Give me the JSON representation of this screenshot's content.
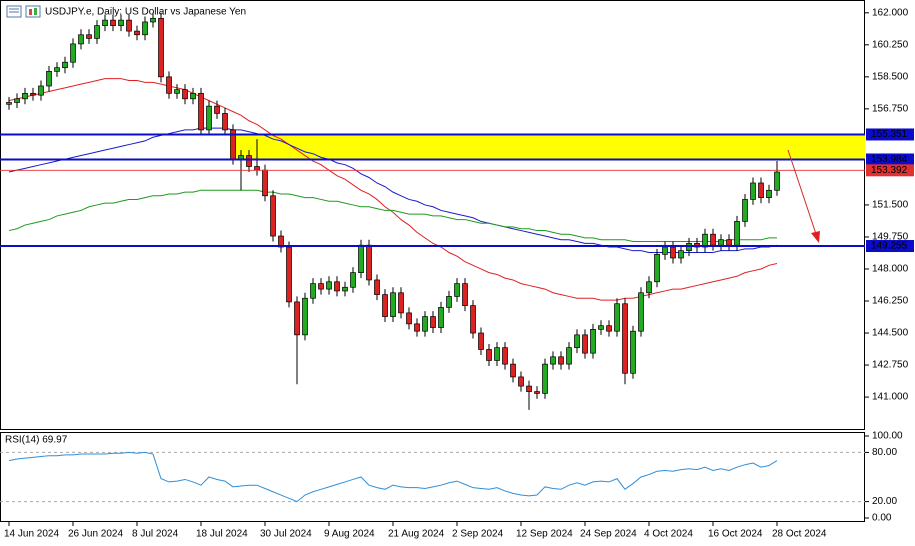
{
  "chart_data": [
    {
      "type": "candlestick",
      "title": "USDJPY.e, Daily:  US Dollar vs Japanese Yen",
      "categories": [
        "14 Jun 2024",
        null,
        null,
        null,
        null,
        null,
        null,
        null,
        "26 Jun 2024",
        null,
        null,
        null,
        null,
        null,
        null,
        null,
        "8 Jul 2024",
        null,
        null,
        null,
        null,
        null,
        null,
        null,
        "18 Jul 2024",
        null,
        null,
        null,
        null,
        null,
        null,
        null,
        "30 Jul 2024",
        null,
        null,
        null,
        null,
        null,
        null,
        null,
        "9 Aug 2024",
        null,
        null,
        null,
        null,
        null,
        null,
        null,
        "21 Aug 2024",
        null,
        null,
        null,
        null,
        null,
        null,
        null,
        "2 Sep 2024",
        null,
        null,
        null,
        null,
        null,
        null,
        null,
        "12 Sep 2024",
        null,
        null,
        null,
        null,
        null,
        null,
        null,
        "24 Sep 2024",
        null,
        null,
        null,
        null,
        null,
        null,
        null,
        "4 Oct 2024",
        null,
        null,
        null,
        null,
        null,
        null,
        null,
        "16 Oct 2024",
        null,
        null,
        null,
        null,
        null,
        null,
        null,
        "28 Oct 2024"
      ],
      "open": [
        157.0,
        157.1,
        157.3,
        157.6,
        157.5,
        158.0,
        158.8,
        159.0,
        159.3,
        160.3,
        160.8,
        160.6,
        161.3,
        161.6,
        161.3,
        161.6,
        161.0,
        160.8,
        161.5,
        161.7,
        158.5,
        157.6,
        157.8,
        157.3,
        157.6,
        155.6,
        156.9,
        156.5,
        155.6,
        154.0,
        154.2,
        153.6,
        153.4,
        152.0,
        149.8,
        149.2,
        146.2,
        144.4,
        146.4,
        147.2,
        146.9,
        147.3,
        146.8,
        147.0,
        147.8,
        149.3,
        147.4,
        146.6,
        145.4,
        146.7,
        145.6,
        145.0,
        144.6,
        145.4,
        144.8,
        145.9,
        146.5,
        147.2,
        146.0,
        144.5,
        143.6,
        143.0,
        143.7,
        142.8,
        142.1,
        141.6,
        141.3,
        141.2,
        142.8,
        143.2,
        142.8,
        143.7,
        144.4,
        143.4,
        144.7,
        144.9,
        144.6,
        146.1,
        142.3,
        144.6,
        146.7,
        147.3,
        148.8,
        149.2,
        148.6,
        149.0,
        149.4,
        149.2,
        149.9,
        149.3,
        149.6,
        149.3,
        150.6,
        151.8,
        152.7,
        151.9,
        152.3
      ],
      "high": [
        157.4,
        157.6,
        157.9,
        157.9,
        158.3,
        159.1,
        159.3,
        159.6,
        160.6,
        161.1,
        161.1,
        161.6,
        161.9,
        161.9,
        161.9,
        161.9,
        161.3,
        161.8,
        162.0,
        162.0,
        158.8,
        158.1,
        158.1,
        157.9,
        157.9,
        157.2,
        157.2,
        156.8,
        155.9,
        154.5,
        154.5,
        155.1,
        153.7,
        152.3,
        150.1,
        149.5,
        146.5,
        146.7,
        147.5,
        147.5,
        147.6,
        147.6,
        147.3,
        148.1,
        149.6,
        149.6,
        147.7,
        146.9,
        147.0,
        147.0,
        145.9,
        145.3,
        145.7,
        145.7,
        146.2,
        146.8,
        147.5,
        147.5,
        146.3,
        144.8,
        143.9,
        144.0,
        144.0,
        143.1,
        142.4,
        141.9,
        141.6,
        143.1,
        143.5,
        143.5,
        144.0,
        144.7,
        144.7,
        145.0,
        145.2,
        145.2,
        146.4,
        146.4,
        144.9,
        147.0,
        147.6,
        149.1,
        149.5,
        149.5,
        149.3,
        149.7,
        149.7,
        150.2,
        150.2,
        149.9,
        149.9,
        150.9,
        152.1,
        153.0,
        153.0,
        152.6,
        153.9
      ],
      "low": [
        156.7,
        156.8,
        157.0,
        157.2,
        157.2,
        157.7,
        158.5,
        158.7,
        159.0,
        160.0,
        160.3,
        160.3,
        161.0,
        161.0,
        161.0,
        160.7,
        160.5,
        160.5,
        161.2,
        158.2,
        157.3,
        157.3,
        157.0,
        157.0,
        155.3,
        155.3,
        156.2,
        155.3,
        153.7,
        152.3,
        153.3,
        153.1,
        151.7,
        149.5,
        148.9,
        145.9,
        141.7,
        144.1,
        146.1,
        146.6,
        146.6,
        146.5,
        146.5,
        146.7,
        147.5,
        147.1,
        146.3,
        145.1,
        145.1,
        145.3,
        144.7,
        144.3,
        144.3,
        144.5,
        144.5,
        145.6,
        146.2,
        145.7,
        144.2,
        143.3,
        142.7,
        142.7,
        142.5,
        141.8,
        141.3,
        140.3,
        140.9,
        140.9,
        142.5,
        142.5,
        142.5,
        143.4,
        143.1,
        143.1,
        144.4,
        144.3,
        144.3,
        141.7,
        142.0,
        144.3,
        146.4,
        147.0,
        148.5,
        148.3,
        148.3,
        148.7,
        148.9,
        148.9,
        149.0,
        149.0,
        149.0,
        149.0,
        150.3,
        151.5,
        151.6,
        151.6,
        152.0
      ],
      "close": [
        157.1,
        157.3,
        157.6,
        157.5,
        158.0,
        158.8,
        159.0,
        159.3,
        160.3,
        160.8,
        160.6,
        161.3,
        161.6,
        161.3,
        161.6,
        161.0,
        160.8,
        161.5,
        161.7,
        158.5,
        157.6,
        157.8,
        157.3,
        157.6,
        155.6,
        156.9,
        156.5,
        155.6,
        154.0,
        154.2,
        153.6,
        153.4,
        152.0,
        149.8,
        149.2,
        146.2,
        144.4,
        146.4,
        147.2,
        146.9,
        147.3,
        146.8,
        147.0,
        147.8,
        149.3,
        147.4,
        146.6,
        145.4,
        146.7,
        145.6,
        145.0,
        144.6,
        145.4,
        144.8,
        145.9,
        146.5,
        147.2,
        146.0,
        144.5,
        143.6,
        143.0,
        143.7,
        142.8,
        142.1,
        141.6,
        141.3,
        141.2,
        142.8,
        143.2,
        142.8,
        143.7,
        144.4,
        143.4,
        144.7,
        144.9,
        144.6,
        146.1,
        142.3,
        144.6,
        146.7,
        147.3,
        148.8,
        149.2,
        148.6,
        149.0,
        149.4,
        149.2,
        149.9,
        149.3,
        149.6,
        149.3,
        150.6,
        151.8,
        152.7,
        151.9,
        152.3,
        153.3
      ],
      "up_color": "#22aa22",
      "down_color": "#dd2222",
      "series": [
        {
          "color": "#e02020",
          "values": [
            157.2,
            157.3,
            157.4,
            157.5,
            157.6,
            157.7,
            157.8,
            157.9,
            158.0,
            158.1,
            158.2,
            158.3,
            158.4,
            158.4,
            158.4,
            158.3,
            158.3,
            158.2,
            158.2,
            158.1,
            158.0,
            157.9,
            157.8,
            157.6,
            157.4,
            157.2,
            157.0,
            156.8,
            156.6,
            156.4,
            156.1,
            155.9,
            155.6,
            155.3,
            155.1,
            154.8,
            154.5,
            154.2,
            153.9,
            153.7,
            153.4,
            153.1,
            152.9,
            152.6,
            152.3,
            152.1,
            151.8,
            151.4,
            151.1,
            150.7,
            150.4,
            150.0,
            149.7,
            149.4,
            149.2,
            148.9,
            148.7,
            148.4,
            148.2,
            148.0,
            147.8,
            147.7,
            147.5,
            147.4,
            147.2,
            147.1,
            147.0,
            146.9,
            146.7,
            146.6,
            146.5,
            146.4,
            146.4,
            146.4,
            146.3,
            146.3,
            146.3,
            146.4,
            146.4,
            146.5,
            146.6,
            146.7,
            146.8,
            146.9,
            146.9,
            147.0,
            147.1,
            147.2,
            147.3,
            147.4,
            147.5,
            147.6,
            147.8,
            147.9,
            148.0,
            148.2,
            148.3
          ]
        },
        {
          "color": "#1a1acc",
          "values": [
            153.3,
            153.4,
            153.5,
            153.6,
            153.7,
            153.8,
            153.9,
            154.0,
            154.1,
            154.2,
            154.3,
            154.4,
            154.5,
            154.6,
            154.7,
            154.8,
            154.9,
            155.0,
            155.2,
            155.3,
            155.4,
            155.5,
            155.6,
            155.6,
            155.7,
            155.7,
            155.7,
            155.7,
            155.6,
            155.6,
            155.5,
            155.4,
            155.3,
            155.1,
            155.0,
            154.8,
            154.6,
            154.4,
            154.3,
            154.1,
            154.0,
            153.8,
            153.7,
            153.5,
            153.2,
            153.0,
            152.7,
            152.5,
            152.2,
            152.0,
            151.8,
            151.7,
            151.5,
            151.4,
            151.2,
            151.1,
            151.0,
            150.9,
            150.8,
            150.6,
            150.5,
            150.4,
            150.3,
            150.2,
            150.1,
            150.0,
            149.9,
            149.8,
            149.7,
            149.6,
            149.6,
            149.5,
            149.4,
            149.4,
            149.3,
            149.2,
            149.2,
            149.1,
            149.0,
            149.0,
            148.9,
            148.9,
            148.9,
            148.9,
            148.9,
            148.9,
            148.9,
            148.9,
            148.9,
            149.0,
            149.0,
            149.0,
            149.1,
            149.1,
            149.2,
            149.2,
            149.3
          ]
        },
        {
          "color": "#1e9a1e",
          "values": [
            150.1,
            150.2,
            150.4,
            150.5,
            150.6,
            150.7,
            150.9,
            151.0,
            151.1,
            151.2,
            151.4,
            151.5,
            151.6,
            151.6,
            151.7,
            151.8,
            151.8,
            151.9,
            152.0,
            152.0,
            152.1,
            152.1,
            152.2,
            152.2,
            152.3,
            152.3,
            152.3,
            152.3,
            152.3,
            152.3,
            152.3,
            152.3,
            152.2,
            152.2,
            152.1,
            152.1,
            152.0,
            151.9,
            151.9,
            151.8,
            151.7,
            151.7,
            151.6,
            151.5,
            151.4,
            151.4,
            151.3,
            151.2,
            151.2,
            151.1,
            151.0,
            151.0,
            151.0,
            150.9,
            150.9,
            150.8,
            150.7,
            150.7,
            150.6,
            150.5,
            150.5,
            150.4,
            150.3,
            150.3,
            150.2,
            150.2,
            150.1,
            150.1,
            150.0,
            149.9,
            149.9,
            149.8,
            149.7,
            149.7,
            149.6,
            149.6,
            149.6,
            149.6,
            149.5,
            149.5,
            149.5,
            149.5,
            149.5,
            149.5,
            149.5,
            149.5,
            149.5,
            149.5,
            149.5,
            149.5,
            149.6,
            149.6,
            149.6,
            149.6,
            149.6,
            149.7,
            149.7
          ]
        }
      ],
      "levels": [
        {
          "value": 155.351,
          "label": "155.351",
          "color": "#0b0bcc"
        },
        {
          "value": 153.984,
          "label": "153.984",
          "color": "#0b0bcc"
        },
        {
          "value": 149.255,
          "label": "149.255",
          "color": "#0b0bcc"
        }
      ],
      "price_line": {
        "value": 153.392,
        "label": "153.392",
        "color": "#e03030"
      },
      "zone": {
        "from": 153.984,
        "to": 155.351,
        "color": "#ffff00"
      },
      "ylim": [
        139.2,
        162.7
      ],
      "yticks": [
        {
          "value": 162,
          "label": "162.000"
        },
        {
          "value": 160.25,
          "label": "160.250"
        },
        {
          "value": 158.5,
          "label": "158.500"
        },
        {
          "value": 156.75,
          "label": "156.750"
        },
        {
          "value": 151.5,
          "label": "151.500"
        },
        {
          "value": 149.75,
          "label": "149.750"
        },
        {
          "value": 148,
          "label": "148.000"
        },
        {
          "value": 146.25,
          "label": "146.250"
        },
        {
          "value": 144.5,
          "label": "144.500"
        },
        {
          "value": 142.75,
          "label": "142.750"
        },
        {
          "value": 141,
          "label": "141.000"
        }
      ]
    },
    {
      "type": "line",
      "title": "RSI(14) 69.97",
      "color": "#2f8fd8",
      "values": [
        70,
        72,
        73,
        74,
        75,
        76,
        76,
        77,
        77,
        78,
        78,
        78,
        78,
        79,
        79,
        80,
        79,
        80,
        78,
        48,
        44,
        45,
        47,
        44,
        40,
        50,
        47,
        45,
        38,
        39,
        40,
        40,
        36,
        32,
        28,
        24,
        20,
        28,
        32,
        35,
        38,
        41,
        44,
        47,
        50,
        40,
        37,
        35,
        40,
        38,
        37,
        37,
        36,
        38,
        40,
        43,
        45,
        41,
        37,
        36,
        35,
        37,
        33,
        30,
        28,
        27,
        28,
        38,
        36,
        35,
        40,
        43,
        40,
        44,
        45,
        44,
        48,
        35,
        42,
        50,
        53,
        57,
        58,
        57,
        59,
        60,
        59,
        62,
        58,
        60,
        58,
        62,
        65,
        67,
        62,
        64,
        70
      ],
      "levels": [
        80,
        20
      ],
      "ylim": [
        -4.9,
        104.9
      ],
      "yticks": [
        {
          "value": 100,
          "label": "100.00"
        },
        {
          "value": 80,
          "label": "80.00"
        },
        {
          "value": 20,
          "label": "20.00"
        },
        {
          "value": 0,
          "label": "0.00"
        }
      ]
    }
  ]
}
